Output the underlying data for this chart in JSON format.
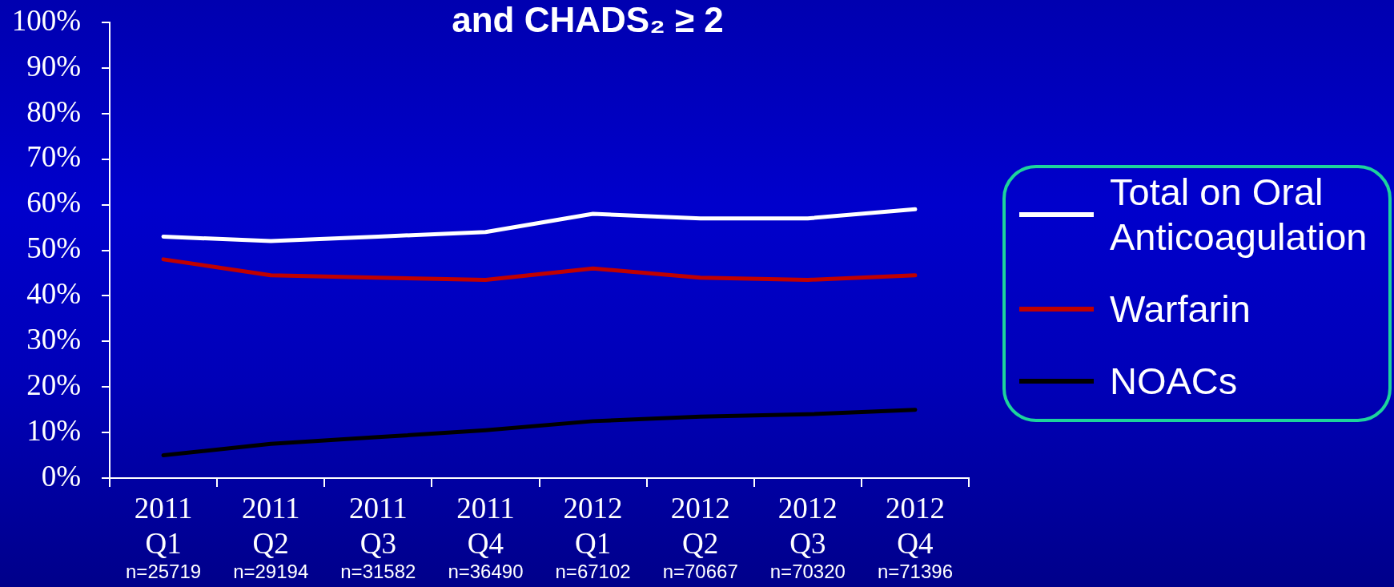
{
  "chart_data": {
    "type": "line",
    "title": "and CHADS₂ ≥ 2",
    "categories": [
      "2011\nQ1\nn=25719",
      "2011\nQ2\nn=29194",
      "2011\nQ3\nn=31582",
      "2011\nQ4\nn=36490",
      "2012\nQ1\nn=67102",
      "2012\nQ2\nn=70667",
      "2012\nQ3\nn=70320",
      "2012\nQ4\nn=71396"
    ],
    "series": [
      {
        "name": "Total on Oral Anticoagulation",
        "color": "#ffffff",
        "values": [
          53,
          52,
          53,
          54,
          58,
          57,
          57,
          59
        ]
      },
      {
        "name": "Warfarin",
        "color": "#c00000",
        "values": [
          48,
          44.5,
          44,
          43.5,
          46,
          44,
          43.5,
          44.5
        ]
      },
      {
        "name": "NOACs",
        "color": "#000000",
        "values": [
          5,
          7.5,
          9,
          10.5,
          12.5,
          13.5,
          14,
          15
        ]
      }
    ],
    "ylim": [
      0,
      100
    ],
    "yticks": [
      {
        "value": 0,
        "label": "0%"
      },
      {
        "value": 10,
        "label": "10%"
      },
      {
        "value": 20,
        "label": "20%"
      },
      {
        "value": 30,
        "label": "30%"
      },
      {
        "value": 40,
        "label": "40%"
      },
      {
        "value": 50,
        "label": "50%"
      },
      {
        "value": 60,
        "label": "60%"
      },
      {
        "value": 70,
        "label": "70%"
      },
      {
        "value": 80,
        "label": "80%"
      },
      {
        "value": 90,
        "label": "90%"
      },
      {
        "value": 100,
        "label": "100%"
      }
    ],
    "legend": "right",
    "marker": "none",
    "line_style": "solid"
  }
}
